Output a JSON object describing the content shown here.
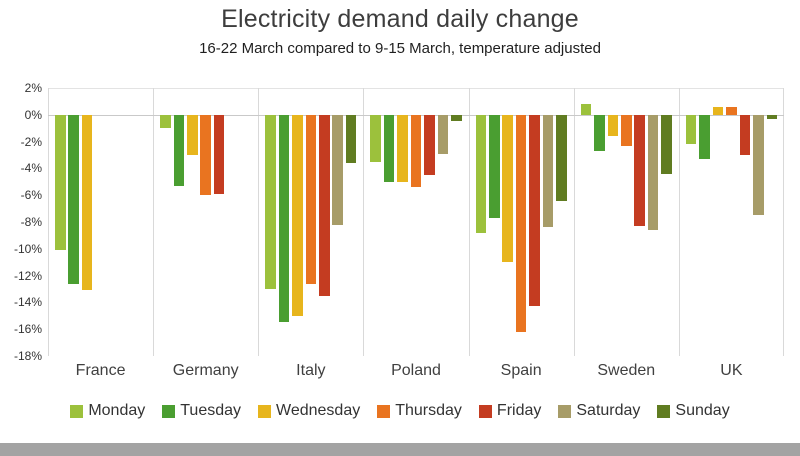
{
  "chart_data": {
    "type": "bar",
    "title": "Electricity demand daily change",
    "subtitle": "16-22 March compared to 9-15 March, temperature adjusted",
    "categories": [
      "France",
      "Germany",
      "Italy",
      "Poland",
      "Spain",
      "Sweden",
      "UK"
    ],
    "series": [
      {
        "name": "Monday",
        "color": "#9cc13c",
        "values": [
          -10.1,
          -1.0,
          -13.0,
          -3.5,
          -8.8,
          0.8,
          -2.2
        ]
      },
      {
        "name": "Tuesday",
        "color": "#4a9e31",
        "values": [
          -12.6,
          -5.3,
          -15.5,
          -5.0,
          -7.7,
          -2.7,
          -3.3
        ]
      },
      {
        "name": "Wednesday",
        "color": "#e7b51d",
        "values": [
          -13.1,
          -3.0,
          -15.0,
          -5.0,
          -11.0,
          -1.6,
          0.6
        ]
      },
      {
        "name": "Thursday",
        "color": "#e97420",
        "values": [
          null,
          -6.0,
          -12.6,
          -5.4,
          -16.2,
          -2.3,
          0.6
        ]
      },
      {
        "name": "Friday",
        "color": "#c43c21",
        "values": [
          null,
          -5.9,
          -13.5,
          -4.5,
          -14.3,
          -8.3,
          -3.0
        ]
      },
      {
        "name": "Saturday",
        "color": "#a79c68",
        "values": [
          null,
          null,
          -8.2,
          -2.9,
          -8.4,
          -8.6,
          -7.5
        ]
      },
      {
        "name": "Sunday",
        "color": "#607c21",
        "values": [
          null,
          null,
          -3.6,
          -0.5,
          -6.4,
          -4.4,
          -0.3
        ]
      }
    ],
    "y_axis": {
      "min": -18,
      "max": 2,
      "step": 2,
      "tick_suffix": "%"
    },
    "legend_position": "bottom",
    "grid": "vertical-category-separators"
  }
}
